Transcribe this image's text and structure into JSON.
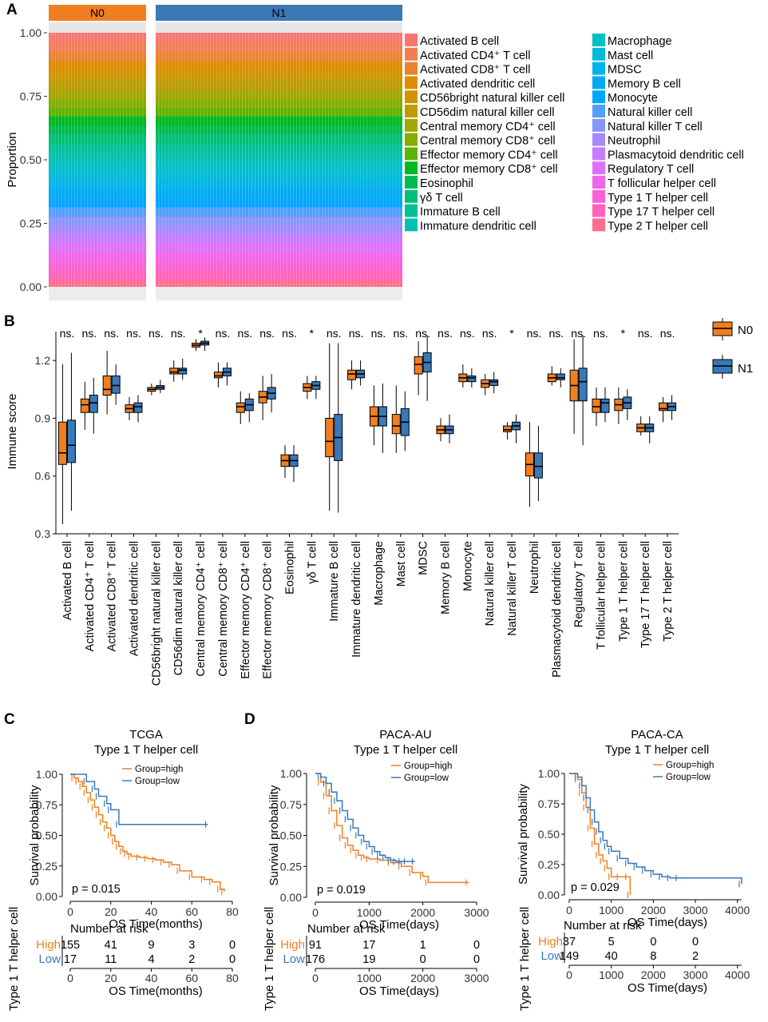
{
  "panel_labels": {
    "a": "A",
    "b": "B",
    "c": "C",
    "d": "D"
  },
  "colors": {
    "high": "#F07F22",
    "low": "#3A78B8",
    "n0": "#F07F22",
    "n1": "#3A78B8",
    "strip_n0": "#F07F22",
    "strip_n1": "#3C79B4"
  },
  "chart_data": [
    {
      "type": "stacked-bar",
      "id": "A",
      "ylabel": "Proportion",
      "yticks": [
        "0.00",
        "0.25",
        "0.50",
        "0.75",
        "1.00"
      ],
      "ylim": [
        0,
        1
      ],
      "groups": [
        {
          "name": "N0",
          "bars": 30
        },
        {
          "name": "N1",
          "bars": 77
        }
      ],
      "legend_col1": [
        "Activated B cell",
        "Activated CD4⁺ T cell",
        "Activated CD8⁺ T cell",
        "Activated dendritic cell",
        "CD56bright natural killer cell",
        "CD56dim natural killer cell",
        "Central memory CD4⁺ cell",
        "Central memory CD8⁺ cell",
        "Effector memory CD4⁺ cell",
        "Effector memory CD8⁺ cell",
        "Eosinophil",
        "γδ T cell",
        "Immature B cell",
        "Immature dendritic cell"
      ],
      "legend_col2": [
        "Macrophage",
        "Mast cell",
        "MDSC",
        "Memory B cell",
        "Monocyte",
        "Natural killer cell",
        "Natural killer T cell",
        "Neutrophil",
        "Plasmacytoid dendritic cell",
        "Regulatory T cell",
        "T follicular helper cell",
        "Type 1 T helper cell",
        "Type 17 T helper cell",
        "Type 2 T helper cell"
      ],
      "legend_colors": [
        "#F8766D",
        "#F27D52",
        "#EA8331",
        "#DE8C00",
        "#CF9400",
        "#BC9C00",
        "#A3A500",
        "#86AC00",
        "#5EB300",
        "#00B81F",
        "#00BB4E",
        "#00BF74",
        "#00C094",
        "#00C0AF",
        "#00BFC4",
        "#00BBD7",
        "#00B4E8",
        "#00ABF4",
        "#00A5FF",
        "#529EFF",
        "#8895F9",
        "#A58AFF",
        "#C77CFF",
        "#DE70F9",
        "#F066EA",
        "#FB61D7",
        "#FF62BC",
        "#FF6C91"
      ],
      "proportions": [
        0.04,
        0.036,
        0.037,
        0.034,
        0.037,
        0.04,
        0.036,
        0.035,
        0.034,
        0.037,
        0.033,
        0.038,
        0.034,
        0.036,
        0.035,
        0.034,
        0.038,
        0.036,
        0.037,
        0.037,
        0.034,
        0.035,
        0.034,
        0.036,
        0.035,
        0.037,
        0.036,
        0.034
      ]
    },
    {
      "type": "boxplot",
      "id": "B",
      "ylabel": "Immune score",
      "yticks": [
        "0.3",
        "0.6",
        "0.9",
        "1.2"
      ],
      "ylim": [
        0.3,
        1.35
      ],
      "legend": [
        "N0",
        "N1"
      ],
      "categories": [
        "Activated B cell",
        "Activated CD4⁺ T cell",
        "Activated CD8⁺ T cell",
        "Activated dendritic cell",
        "CD56bright natural killer cell",
        "CD56dim natural killer cell",
        "Central memory CD4⁺ cell",
        "Central memory CD8⁺ cell",
        "Effector memory CD4⁺ cell",
        "Effector memory CD8⁺ cell",
        "Eosinophil",
        "γδ T cell",
        "Immature B cell",
        "Immature dendritic cell",
        "Macrophage",
        "Mast cell",
        "MDSC",
        "Memory B cell",
        "Monocyte",
        "Natural killer cell",
        "Natural killer T cell",
        "Neutrophil",
        "Plasmacytoid dendritic cell",
        "Regulatory T cell",
        "T follicular helper cell",
        "Type 1 T helper cell",
        "Type 17 T helper cell",
        "Type 2 T helper cell"
      ],
      "significance": [
        "ns.",
        "ns.",
        "ns.",
        "ns.",
        "ns.",
        "ns.",
        "*",
        "ns.",
        "ns.",
        "ns.",
        "ns.",
        "*",
        "ns.",
        "ns.",
        "ns.",
        "ns.",
        "ns.",
        "ns.",
        "ns.",
        "ns.",
        "*",
        "ns.",
        "ns.",
        "ns.",
        "ns.",
        "*",
        "ns.",
        "ns."
      ],
      "n0": [
        [
          0.35,
          0.66,
          0.72,
          0.88,
          1.18
        ],
        [
          0.84,
          0.93,
          0.97,
          1.0,
          1.09
        ],
        [
          0.92,
          1.02,
          1.05,
          1.12,
          1.25
        ],
        [
          0.89,
          0.93,
          0.95,
          0.97,
          1.01
        ],
        [
          1.02,
          1.04,
          1.05,
          1.06,
          1.08
        ],
        [
          1.09,
          1.13,
          1.14,
          1.16,
          1.2
        ],
        [
          1.25,
          1.27,
          1.28,
          1.29,
          1.31
        ],
        [
          1.06,
          1.11,
          1.12,
          1.14,
          1.19
        ],
        [
          0.87,
          0.93,
          0.96,
          0.98,
          1.04
        ],
        [
          0.89,
          0.98,
          1.01,
          1.04,
          1.12
        ],
        [
          0.59,
          0.65,
          0.68,
          0.71,
          0.76
        ],
        [
          1.0,
          1.04,
          1.06,
          1.08,
          1.12
        ],
        [
          0.42,
          0.7,
          0.78,
          0.9,
          1.29
        ],
        [
          1.05,
          1.1,
          1.13,
          1.15,
          1.2
        ],
        [
          0.76,
          0.86,
          0.91,
          0.96,
          1.07
        ],
        [
          0.72,
          0.82,
          0.86,
          0.92,
          1.07
        ],
        [
          1.02,
          1.13,
          1.18,
          1.22,
          1.3
        ],
        [
          0.78,
          0.82,
          0.84,
          0.86,
          0.9
        ],
        [
          1.06,
          1.09,
          1.11,
          1.13,
          1.18
        ],
        [
          1.02,
          1.06,
          1.08,
          1.1,
          1.13
        ],
        [
          0.79,
          0.83,
          0.84,
          0.86,
          0.88
        ],
        [
          0.44,
          0.6,
          0.66,
          0.72,
          0.88
        ],
        [
          1.07,
          1.09,
          1.11,
          1.13,
          1.17
        ],
        [
          0.82,
          0.99,
          1.07,
          1.15,
          1.31
        ],
        [
          0.86,
          0.93,
          0.96,
          1.0,
          1.06
        ],
        [
          0.87,
          0.94,
          0.97,
          1.0,
          1.06
        ],
        [
          0.81,
          0.83,
          0.85,
          0.87,
          0.91
        ],
        [
          0.88,
          0.94,
          0.95,
          0.98,
          1.01
        ]
      ],
      "n1": [
        [
          0.42,
          0.67,
          0.76,
          0.89,
          1.24
        ],
        [
          0.82,
          0.93,
          0.98,
          1.02,
          1.11
        ],
        [
          0.97,
          1.03,
          1.07,
          1.12,
          1.18
        ],
        [
          0.88,
          0.93,
          0.96,
          0.98,
          1.02
        ],
        [
          1.03,
          1.05,
          1.06,
          1.07,
          1.1
        ],
        [
          1.1,
          1.13,
          1.15,
          1.16,
          1.21
        ],
        [
          1.25,
          1.28,
          1.29,
          1.3,
          1.32
        ],
        [
          1.07,
          1.12,
          1.14,
          1.16,
          1.19
        ],
        [
          0.88,
          0.94,
          0.97,
          1.0,
          1.03
        ],
        [
          0.93,
          1.0,
          1.03,
          1.06,
          1.13
        ],
        [
          0.57,
          0.65,
          0.68,
          0.71,
          0.76
        ],
        [
          1.0,
          1.05,
          1.07,
          1.09,
          1.12
        ],
        [
          0.41,
          0.68,
          0.8,
          0.92,
          1.29
        ],
        [
          1.07,
          1.11,
          1.13,
          1.15,
          1.2
        ],
        [
          0.72,
          0.86,
          0.91,
          0.96,
          1.08
        ],
        [
          0.73,
          0.81,
          0.88,
          0.95,
          1.04
        ],
        [
          0.99,
          1.14,
          1.19,
          1.24,
          1.33
        ],
        [
          0.77,
          0.82,
          0.84,
          0.86,
          0.92
        ],
        [
          1.06,
          1.09,
          1.11,
          1.12,
          1.16
        ],
        [
          1.03,
          1.07,
          1.09,
          1.1,
          1.14
        ],
        [
          0.77,
          0.84,
          0.86,
          0.88,
          0.92
        ],
        [
          0.47,
          0.59,
          0.65,
          0.72,
          0.86
        ],
        [
          1.06,
          1.1,
          1.11,
          1.13,
          1.16
        ],
        [
          0.76,
          0.99,
          1.09,
          1.16,
          1.33
        ],
        [
          0.88,
          0.93,
          0.98,
          1.0,
          1.06
        ],
        [
          0.89,
          0.95,
          0.98,
          1.01,
          1.05
        ],
        [
          0.77,
          0.83,
          0.85,
          0.87,
          0.91
        ],
        [
          0.89,
          0.94,
          0.96,
          0.98,
          1.02
        ]
      ]
    },
    {
      "type": "line",
      "id": "C",
      "title": "TCGA",
      "subtitle": "Type 1 T helper cell",
      "ylabel": "Survival probability",
      "xlabel": "OS Time(months)",
      "xticks": [
        "0",
        "20",
        "40",
        "60",
        "80"
      ],
      "yticks": [
        "0.00",
        "0.25",
        "0.50",
        "0.75",
        "1.00"
      ],
      "xlim": [
        0,
        80
      ],
      "ylim": [
        0,
        1
      ],
      "legend": [
        "Group=high",
        "Group=low"
      ],
      "pvalue": "p = 0.015",
      "risk_title": "Number at risk",
      "risk_ylabel": "Type 1 T helper cell",
      "risk_groups": [
        "High",
        "Low"
      ],
      "risk_high": [
        "155",
        "41",
        "9",
        "3",
        "0"
      ],
      "risk_low": [
        "17",
        "11",
        "4",
        "2",
        "0"
      ],
      "series": [
        {
          "name": "high",
          "x": [
            0,
            2,
            4,
            6,
            8,
            10,
            12,
            14,
            16,
            18,
            20,
            22,
            24,
            26,
            28,
            30,
            34,
            38,
            42,
            46,
            50,
            54,
            60,
            66,
            70,
            74,
            76
          ],
          "y": [
            1,
            0.97,
            0.94,
            0.9,
            0.85,
            0.79,
            0.73,
            0.67,
            0.61,
            0.56,
            0.5,
            0.45,
            0.41,
            0.37,
            0.35,
            0.33,
            0.32,
            0.31,
            0.3,
            0.28,
            0.26,
            0.21,
            0.16,
            0.14,
            0.12,
            0.06,
            0.04
          ]
        },
        {
          "name": "low",
          "x": [
            0,
            8,
            12,
            14,
            18,
            20,
            24,
            68
          ],
          "y": [
            1,
            0.94,
            0.88,
            0.82,
            0.76,
            0.71,
            0.59,
            0.59
          ]
        }
      ]
    },
    {
      "type": "line",
      "id": "D1",
      "title": "PACA-AU",
      "subtitle": "Type 1 T helper cell",
      "ylabel": "Survival probability",
      "xlabel": "OS Time(days)",
      "xticks": [
        "0",
        "1000",
        "2000",
        "3000"
      ],
      "yticks": [
        "0.00",
        "0.25",
        "0.50",
        "0.75",
        "1.00"
      ],
      "xlim": [
        0,
        3000
      ],
      "ylim": [
        0,
        1
      ],
      "legend": [
        "Group=high",
        "Group=low"
      ],
      "pvalue": "p = 0.019",
      "risk_title": "Number at risk",
      "risk_ylabel": "Type 1 T helper cell",
      "risk_groups": [
        "High",
        "Low"
      ],
      "risk_high": [
        "91",
        "17",
        "1",
        "0"
      ],
      "risk_low": [
        "176",
        "19",
        "0",
        "0"
      ],
      "series": [
        {
          "name": "high",
          "x": [
            0,
            100,
            200,
            300,
            400,
            500,
            600,
            700,
            800,
            900,
            1000,
            1200,
            1400,
            1600,
            1800,
            2000,
            2100,
            2850
          ],
          "y": [
            1,
            0.93,
            0.82,
            0.7,
            0.58,
            0.48,
            0.42,
            0.38,
            0.34,
            0.32,
            0.31,
            0.3,
            0.28,
            0.25,
            0.2,
            0.17,
            0.12,
            0.12
          ]
        },
        {
          "name": "low",
          "x": [
            0,
            100,
            200,
            300,
            400,
            500,
            600,
            700,
            800,
            900,
            1000,
            1100,
            1200,
            1300,
            1400,
            1500,
            1600,
            1700,
            1850
          ],
          "y": [
            1,
            0.97,
            0.92,
            0.85,
            0.78,
            0.7,
            0.63,
            0.56,
            0.5,
            0.45,
            0.41,
            0.37,
            0.34,
            0.32,
            0.3,
            0.29,
            0.29,
            0.29,
            0.29
          ]
        }
      ]
    },
    {
      "type": "line",
      "id": "D2",
      "title": "PACA-CA",
      "subtitle": "Type 1 T helper cell",
      "ylabel": "Survival probability",
      "xlabel": "OS Time(days)",
      "xticks": [
        "0",
        "1000",
        "2000",
        "3000",
        "4000"
      ],
      "yticks": [
        "0.00",
        "0.25",
        "0.50",
        "0.75",
        "1.00"
      ],
      "xlim": [
        0,
        4100
      ],
      "ylim": [
        0,
        1
      ],
      "legend": [
        "Group=high",
        "Group=low"
      ],
      "pvalue": "p = 0.029",
      "risk_title": "Number at risk",
      "risk_ylabel": "Type 1 T helper cell",
      "risk_groups": [
        "High",
        "Low"
      ],
      "risk_high": [
        "37",
        "5",
        "0",
        "0"
      ],
      "risk_low": [
        "149",
        "40",
        "8",
        "2"
      ],
      "series": [
        {
          "name": "high",
          "x": [
            0,
            200,
            300,
            400,
            500,
            600,
            700,
            800,
            900,
            1000,
            1200,
            1400,
            1450
          ],
          "y": [
            1,
            0.95,
            0.84,
            0.72,
            0.55,
            0.42,
            0.33,
            0.28,
            0.22,
            0.15,
            0.15,
            0.15,
            0.0
          ]
        },
        {
          "name": "low",
          "x": [
            0,
            200,
            300,
            400,
            500,
            600,
            700,
            800,
            900,
            1000,
            1200,
            1400,
            1600,
            1800,
            2000,
            2200,
            2400,
            2600,
            4100
          ],
          "y": [
            1,
            0.97,
            0.9,
            0.8,
            0.7,
            0.6,
            0.52,
            0.45,
            0.4,
            0.36,
            0.3,
            0.26,
            0.23,
            0.2,
            0.17,
            0.15,
            0.14,
            0.14,
            0.09
          ]
        }
      ]
    }
  ]
}
